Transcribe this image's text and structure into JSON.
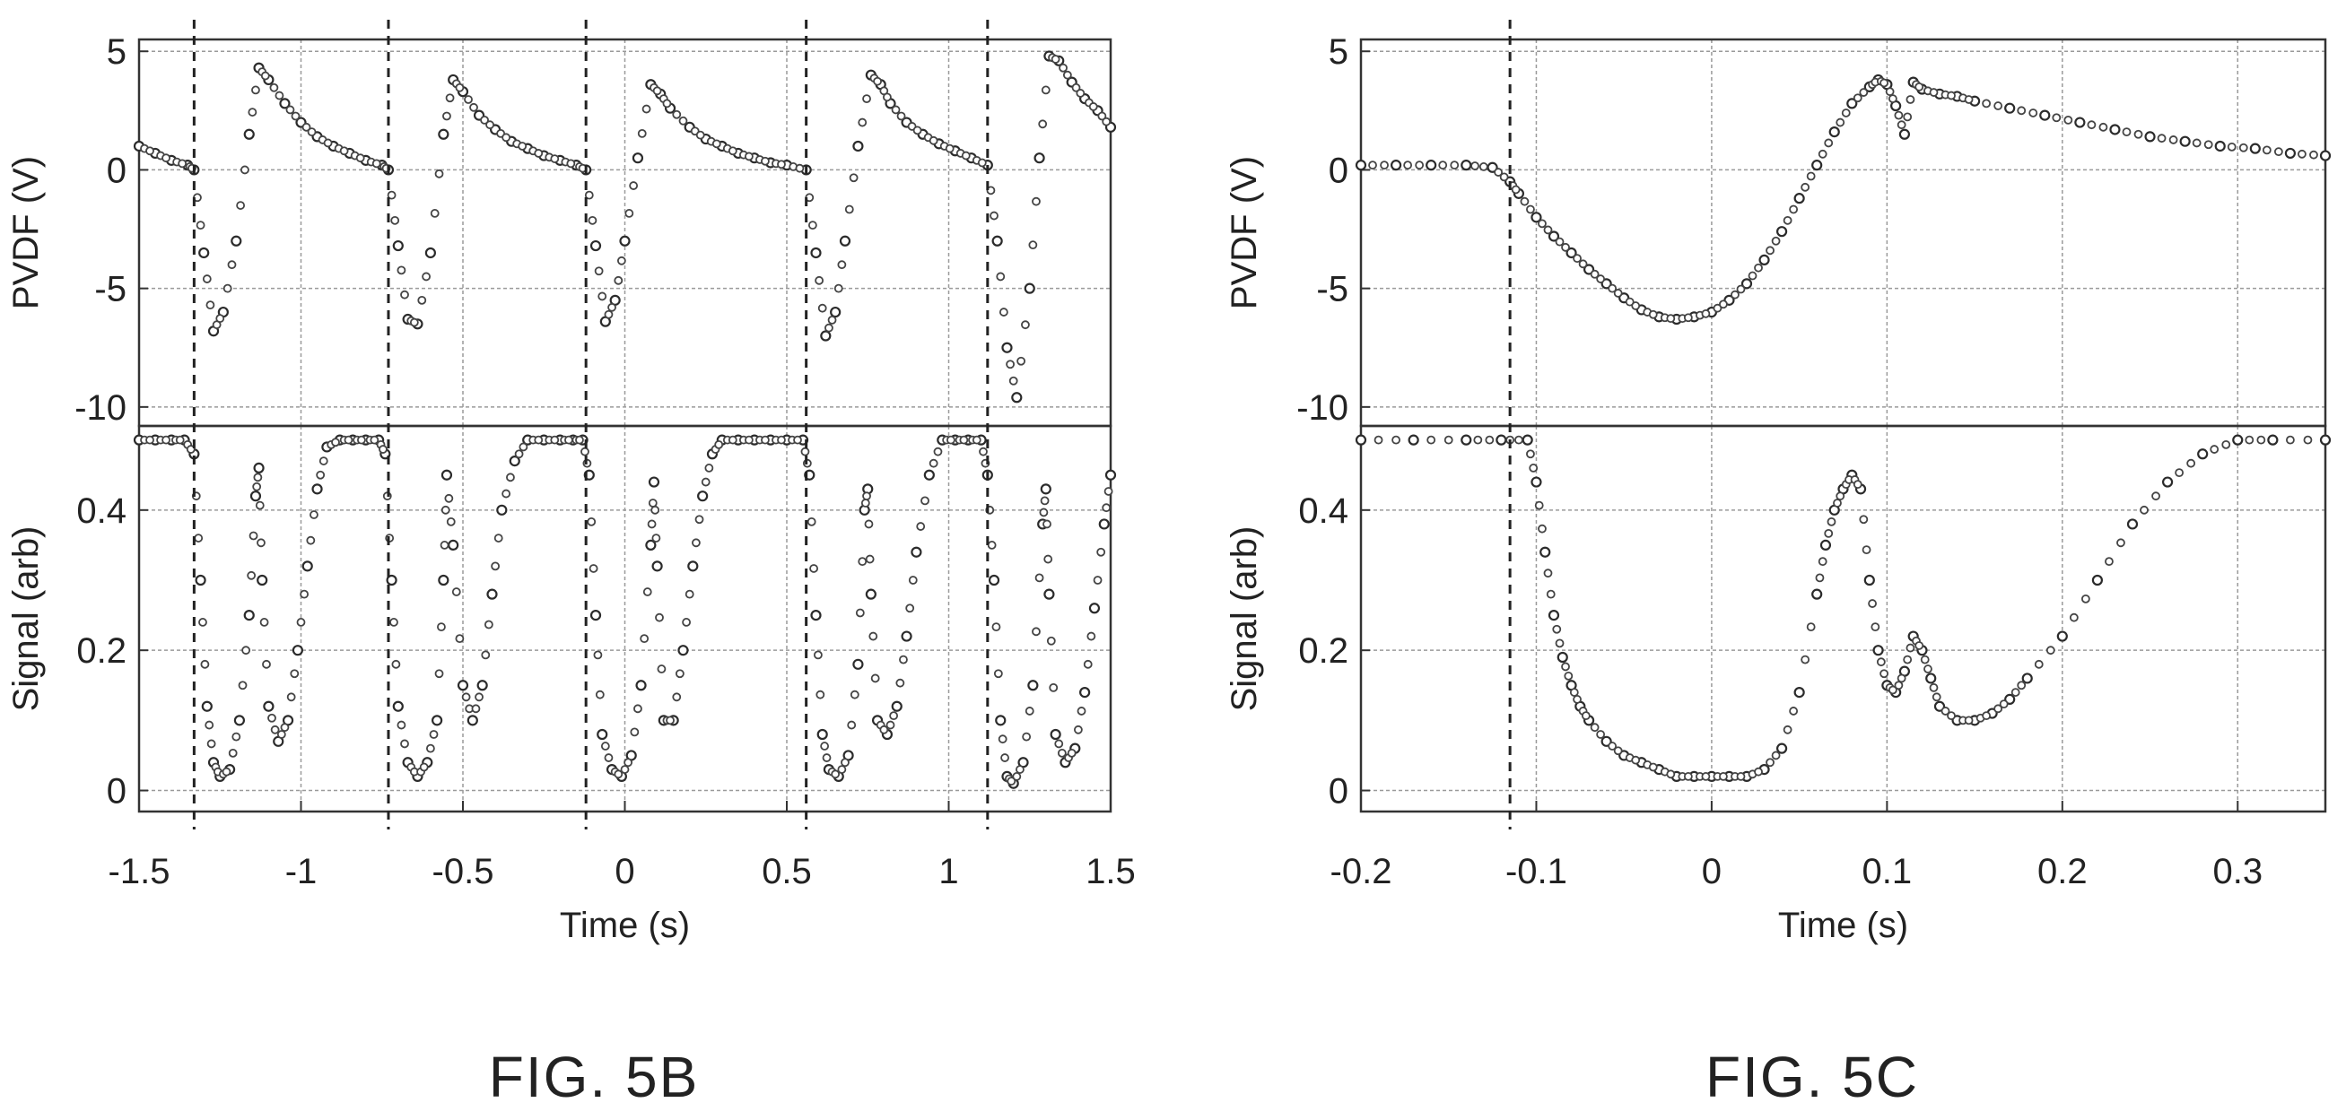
{
  "figures": [
    {
      "caption": "FIG. 5B"
    },
    {
      "caption": "FIG. 5C"
    }
  ],
  "chart_data": [
    {
      "type": "scatter",
      "caption": "FIG. 5B",
      "xlabel": "Time (s)",
      "xlim": [
        -1.5,
        1.5
      ],
      "x_ticks": [
        -1.5,
        -1,
        -0.5,
        0,
        0.5,
        1,
        1.5
      ],
      "x_tick_labels": [
        "-1.5",
        "-1",
        "-0.5",
        "0",
        "0.5",
        "1",
        "1.5"
      ],
      "grid": true,
      "event_markers_x": [
        -1.33,
        -0.73,
        -0.12,
        0.56,
        1.12
      ],
      "panels": [
        {
          "ylabel": "PVDF (V)",
          "ylim": [
            -10.8,
            5.5
          ],
          "y_ticks": [
            5,
            0,
            -5,
            -10
          ],
          "y_tick_labels": [
            "5",
            "0",
            "-5",
            "-10"
          ],
          "series": [
            {
              "x": [
                -1.5,
                -1.45,
                -1.4,
                -1.35,
                -1.33,
                -1.3,
                -1.27,
                -1.24,
                -1.2,
                -1.16,
                -1.13,
                -1.1,
                -1.05,
                -1.0,
                -0.95,
                -0.9,
                -0.85,
                -0.8,
                -0.75,
                -0.73,
                -0.7,
                -0.67,
                -0.64,
                -0.6,
                -0.56,
                -0.53,
                -0.5,
                -0.45,
                -0.4,
                -0.35,
                -0.3,
                -0.25,
                -0.2,
                -0.15,
                -0.12,
                -0.09,
                -0.06,
                -0.03,
                0.0,
                0.04,
                0.08,
                0.11,
                0.14,
                0.2,
                0.25,
                0.3,
                0.35,
                0.4,
                0.45,
                0.5,
                0.56,
                0.59,
                0.62,
                0.65,
                0.68,
                0.72,
                0.76,
                0.79,
                0.82,
                0.87,
                0.92,
                0.97,
                1.02,
                1.07,
                1.12,
                1.15,
                1.18,
                1.21,
                1.25,
                1.28,
                1.31,
                1.34,
                1.38,
                1.42,
                1.46,
                1.5
              ],
              "y": [
                1.0,
                0.7,
                0.4,
                0.2,
                0.0,
                -3.5,
                -6.8,
                -6.0,
                -3.0,
                1.5,
                4.3,
                3.8,
                2.8,
                2.0,
                1.4,
                1.0,
                0.7,
                0.4,
                0.2,
                0.0,
                -3.2,
                -6.3,
                -6.5,
                -3.5,
                1.5,
                3.8,
                3.3,
                2.3,
                1.7,
                1.2,
                0.9,
                0.6,
                0.4,
                0.2,
                0.0,
                -3.2,
                -6.4,
                -5.5,
                -3.0,
                0.5,
                3.6,
                3.2,
                2.6,
                1.8,
                1.3,
                1.0,
                0.7,
                0.5,
                0.3,
                0.2,
                0.0,
                -3.5,
                -7.0,
                -6.0,
                -3.0,
                1.0,
                4.0,
                3.6,
                2.8,
                2.0,
                1.5,
                1.1,
                0.8,
                0.5,
                0.2,
                -3.0,
                -7.5,
                -9.6,
                -5.0,
                0.5,
                4.8,
                4.6,
                3.7,
                3.0,
                2.5,
                1.8
              ]
            }
          ]
        },
        {
          "ylabel": "Signal (arb)",
          "ylim": [
            -0.03,
            0.52
          ],
          "y_ticks": [
            0,
            0.2,
            0.4
          ],
          "y_tick_labels": [
            "0",
            "0.2",
            "0.4"
          ],
          "series": [
            {
              "x": [
                -1.5,
                -1.45,
                -1.4,
                -1.36,
                -1.33,
                -1.31,
                -1.29,
                -1.27,
                -1.25,
                -1.22,
                -1.19,
                -1.16,
                -1.14,
                -1.13,
                -1.12,
                -1.1,
                -1.07,
                -1.04,
                -1.01,
                -0.98,
                -0.95,
                -0.92,
                -0.88,
                -0.84,
                -0.8,
                -0.76,
                -0.74,
                -0.72,
                -0.7,
                -0.67,
                -0.64,
                -0.61,
                -0.58,
                -0.56,
                -0.55,
                -0.53,
                -0.5,
                -0.47,
                -0.44,
                -0.41,
                -0.38,
                -0.34,
                -0.3,
                -0.25,
                -0.2,
                -0.16,
                -0.13,
                -0.11,
                -0.09,
                -0.07,
                -0.04,
                -0.01,
                0.02,
                0.05,
                0.08,
                0.09,
                0.1,
                0.12,
                0.15,
                0.18,
                0.21,
                0.24,
                0.27,
                0.3,
                0.35,
                0.4,
                0.45,
                0.5,
                0.55,
                0.57,
                0.59,
                0.61,
                0.63,
                0.66,
                0.69,
                0.72,
                0.74,
                0.75,
                0.76,
                0.78,
                0.81,
                0.84,
                0.87,
                0.9,
                0.94,
                0.98,
                1.02,
                1.06,
                1.1,
                1.12,
                1.14,
                1.16,
                1.18,
                1.2,
                1.23,
                1.26,
                1.29,
                1.3,
                1.31,
                1.33,
                1.36,
                1.39,
                1.42,
                1.45,
                1.48,
                1.5
              ],
              "y": [
                0.5,
                0.5,
                0.5,
                0.5,
                0.48,
                0.3,
                0.12,
                0.04,
                0.02,
                0.03,
                0.1,
                0.25,
                0.42,
                0.46,
                0.3,
                0.12,
                0.07,
                0.1,
                0.2,
                0.32,
                0.43,
                0.49,
                0.5,
                0.5,
                0.5,
                0.5,
                0.48,
                0.3,
                0.12,
                0.04,
                0.02,
                0.04,
                0.1,
                0.3,
                0.45,
                0.35,
                0.15,
                0.1,
                0.15,
                0.28,
                0.4,
                0.47,
                0.5,
                0.5,
                0.5,
                0.5,
                0.5,
                0.45,
                0.25,
                0.08,
                0.03,
                0.02,
                0.05,
                0.15,
                0.35,
                0.44,
                0.32,
                0.1,
                0.1,
                0.2,
                0.32,
                0.42,
                0.48,
                0.5,
                0.5,
                0.5,
                0.5,
                0.5,
                0.5,
                0.45,
                0.25,
                0.08,
                0.03,
                0.02,
                0.05,
                0.18,
                0.4,
                0.43,
                0.28,
                0.1,
                0.08,
                0.12,
                0.22,
                0.34,
                0.45,
                0.5,
                0.5,
                0.5,
                0.5,
                0.45,
                0.3,
                0.1,
                0.02,
                0.01,
                0.04,
                0.15,
                0.38,
                0.43,
                0.28,
                0.08,
                0.04,
                0.06,
                0.14,
                0.26,
                0.38,
                0.45
              ]
            }
          ]
        }
      ]
    },
    {
      "type": "scatter",
      "caption": "FIG. 5C",
      "xlabel": "Time (s)",
      "xlim": [
        -0.2,
        0.35
      ],
      "x_ticks": [
        -0.2,
        -0.1,
        0,
        0.1,
        0.2,
        0.3
      ],
      "x_tick_labels": [
        "-0.2",
        "-0.1",
        "0",
        "0.1",
        "0.2",
        "0.3"
      ],
      "grid": true,
      "event_markers_x": [
        -0.115
      ],
      "panels": [
        {
          "ylabel": "PVDF (V)",
          "ylim": [
            -10.8,
            5.5
          ],
          "y_ticks": [
            5,
            0,
            -5,
            -10
          ],
          "y_tick_labels": [
            "5",
            "0",
            "-5",
            "-10"
          ],
          "series": [
            {
              "x": [
                -0.2,
                -0.18,
                -0.16,
                -0.14,
                -0.125,
                -0.115,
                -0.11,
                -0.1,
                -0.09,
                -0.08,
                -0.07,
                -0.06,
                -0.05,
                -0.04,
                -0.03,
                -0.02,
                -0.01,
                0.0,
                0.01,
                0.02,
                0.03,
                0.04,
                0.05,
                0.06,
                0.07,
                0.08,
                0.09,
                0.095,
                0.1,
                0.105,
                0.11,
                0.115,
                0.12,
                0.13,
                0.14,
                0.15,
                0.17,
                0.19,
                0.21,
                0.23,
                0.25,
                0.27,
                0.29,
                0.31,
                0.33,
                0.35
              ],
              "y": [
                0.2,
                0.2,
                0.2,
                0.2,
                0.1,
                -0.5,
                -1.0,
                -2.0,
                -2.8,
                -3.5,
                -4.2,
                -4.8,
                -5.4,
                -5.9,
                -6.2,
                -6.3,
                -6.2,
                -6.0,
                -5.5,
                -4.8,
                -3.8,
                -2.6,
                -1.2,
                0.2,
                1.6,
                2.8,
                3.5,
                3.8,
                3.6,
                2.7,
                1.5,
                3.7,
                3.4,
                3.2,
                3.1,
                2.9,
                2.6,
                2.3,
                2.0,
                1.7,
                1.4,
                1.2,
                1.0,
                0.9,
                0.7,
                0.6
              ]
            }
          ]
        },
        {
          "ylabel": "Signal (arb)",
          "ylim": [
            -0.03,
            0.52
          ],
          "y_ticks": [
            0,
            0.2,
            0.4
          ],
          "y_tick_labels": [
            "0",
            "0.2",
            "0.4"
          ],
          "series": [
            {
              "x": [
                -0.2,
                -0.17,
                -0.14,
                -0.12,
                -0.105,
                -0.1,
                -0.095,
                -0.09,
                -0.085,
                -0.08,
                -0.075,
                -0.07,
                -0.06,
                -0.05,
                -0.04,
                -0.03,
                -0.02,
                -0.01,
                0.0,
                0.01,
                0.02,
                0.03,
                0.04,
                0.05,
                0.06,
                0.065,
                0.07,
                0.075,
                0.08,
                0.085,
                0.09,
                0.095,
                0.1,
                0.105,
                0.11,
                0.115,
                0.12,
                0.125,
                0.13,
                0.14,
                0.15,
                0.16,
                0.17,
                0.18,
                0.2,
                0.22,
                0.24,
                0.26,
                0.28,
                0.3,
                0.32,
                0.35
              ],
              "y": [
                0.5,
                0.5,
                0.5,
                0.5,
                0.5,
                0.44,
                0.34,
                0.25,
                0.19,
                0.15,
                0.12,
                0.1,
                0.07,
                0.05,
                0.04,
                0.03,
                0.02,
                0.02,
                0.02,
                0.02,
                0.02,
                0.03,
                0.06,
                0.14,
                0.28,
                0.35,
                0.4,
                0.43,
                0.45,
                0.43,
                0.3,
                0.2,
                0.15,
                0.14,
                0.17,
                0.22,
                0.2,
                0.16,
                0.12,
                0.1,
                0.1,
                0.11,
                0.13,
                0.16,
                0.22,
                0.3,
                0.38,
                0.44,
                0.48,
                0.5,
                0.5,
                0.5
              ]
            }
          ]
        }
      ]
    }
  ]
}
